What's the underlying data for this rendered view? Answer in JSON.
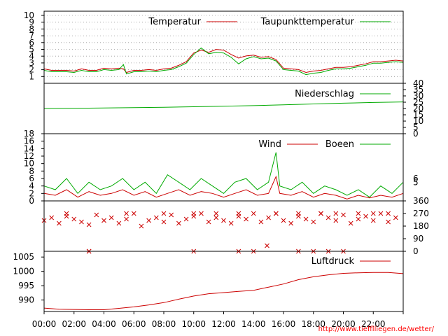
{
  "footer_url": "http://www.tiefflliegen.de/wetter/",
  "colors": {
    "red": "#cc0000",
    "green": "#00aa00",
    "grid": "#999999",
    "url": "#ff0000"
  },
  "chart_data": [
    {
      "id": "temperature",
      "type": "line",
      "y_ticks": [
        "1",
        "2",
        "3",
        "4",
        "5",
        "6",
        "7",
        "8",
        "9",
        "10"
      ],
      "ylim": [
        0,
        10
      ],
      "grid": true,
      "legend_position": "top-right",
      "series": [
        {
          "name": "Temperatur",
          "color": "#cc0000",
          "x": [
            0,
            0.5,
            1,
            1.5,
            2,
            2.5,
            3,
            3.5,
            4,
            4.5,
            5,
            5.3,
            5.5,
            6,
            6.5,
            7,
            7.5,
            8,
            8.5,
            9,
            9.5,
            10,
            10.5,
            11,
            11.5,
            12,
            12.5,
            13,
            13.5,
            14,
            14.5,
            15,
            15.5,
            16,
            16.5,
            17,
            17.5,
            18,
            18.5,
            19,
            19.5,
            20,
            20.5,
            21,
            21.5,
            22,
            22.5,
            23,
            23.5,
            24
          ],
          "values": [
            2.0,
            1.8,
            1.8,
            1.8,
            1.7,
            2.0,
            1.8,
            1.8,
            2.1,
            2.0,
            2.1,
            2.0,
            1.5,
            1.8,
            1.8,
            1.9,
            1.8,
            2.0,
            2.1,
            2.5,
            3.0,
            4.2,
            4.6,
            4.3,
            4.7,
            4.6,
            4.0,
            3.5,
            3.8,
            3.9,
            3.6,
            3.7,
            3.3,
            2.1,
            2.0,
            1.9,
            1.5,
            1.7,
            1.8,
            2.0,
            2.2,
            2.2,
            2.3,
            2.5,
            2.7,
            3.0,
            3.0,
            3.1,
            3.2,
            3.1
          ]
        },
        {
          "name": "Taupunkttemperatur",
          "color": "#00aa00",
          "x": [
            0,
            0.5,
            1,
            1.5,
            2,
            2.5,
            3,
            3.5,
            4,
            4.5,
            5,
            5.3,
            5.5,
            6,
            6.5,
            7,
            7.5,
            8,
            8.5,
            9,
            9.5,
            10,
            10.5,
            11,
            11.5,
            12,
            12.5,
            13,
            13.5,
            14,
            14.5,
            15,
            15.5,
            16,
            16.5,
            17,
            17.5,
            18,
            18.5,
            19,
            19.5,
            20,
            20.5,
            21,
            21.5,
            22,
            22.5,
            23,
            23.5,
            24
          ],
          "values": [
            1.8,
            1.6,
            1.6,
            1.6,
            1.5,
            1.8,
            1.6,
            1.6,
            1.9,
            1.8,
            1.9,
            2.6,
            1.3,
            1.6,
            1.6,
            1.7,
            1.6,
            1.8,
            1.9,
            2.3,
            2.8,
            4.0,
            4.9,
            4.1,
            4.3,
            4.2,
            3.6,
            2.7,
            3.4,
            3.7,
            3.4,
            3.5,
            3.1,
            1.9,
            1.8,
            1.7,
            1.2,
            1.4,
            1.5,
            1.8,
            2.0,
            2.0,
            2.1,
            2.3,
            2.5,
            2.8,
            2.8,
            2.9,
            3.0,
            2.9
          ]
        }
      ]
    },
    {
      "id": "precipitation",
      "type": "line",
      "y_ticks": [
        "0",
        "5",
        "10",
        "15",
        "20",
        "25",
        "30",
        "35",
        "40"
      ],
      "ylim": [
        0,
        40
      ],
      "legend_position": "top-right",
      "series": [
        {
          "name": "Niederschlag",
          "color": "#00aa00",
          "x": [
            0,
            2,
            4,
            6,
            8,
            10,
            12,
            14,
            16,
            18,
            20,
            22,
            24
          ],
          "values": [
            20.0,
            20.2,
            20.4,
            20.7,
            21.0,
            21.4,
            21.8,
            22.3,
            22.9,
            23.6,
            24.2,
            24.8,
            25.2
          ]
        }
      ]
    },
    {
      "id": "wind",
      "type": "line",
      "y_ticks": [
        "0",
        "2",
        "4",
        "6",
        "8",
        "10",
        "12",
        "14",
        "16",
        "18"
      ],
      "right_ticks": [
        "5",
        "6"
      ],
      "ylim": [
        0,
        18
      ],
      "legend_position": "top-right",
      "series": [
        {
          "name": "Wind",
          "color": "#cc0000",
          "x": [
            0,
            0.75,
            1.5,
            2.25,
            3,
            3.75,
            4.5,
            5.25,
            6,
            6.75,
            7.5,
            8.25,
            9,
            9.75,
            10.5,
            11.25,
            12,
            12.75,
            13.5,
            14.25,
            15,
            15.5,
            15.75,
            16.5,
            17.25,
            18,
            18.75,
            19.5,
            20.25,
            21,
            21.75,
            22.5,
            23.25,
            24
          ],
          "values": [
            2,
            1.5,
            3,
            1,
            2.5,
            1.5,
            2,
            3,
            1.5,
            2.5,
            1,
            2,
            3,
            1.5,
            2.5,
            2,
            1,
            2,
            3,
            1.5,
            2,
            6.5,
            2,
            1.5,
            2.5,
            1,
            2,
            1.5,
            0.5,
            1.5,
            0.8,
            1.5,
            1,
            2
          ]
        },
        {
          "name": "Boeen",
          "color": "#00aa00",
          "x": [
            0,
            0.75,
            1.5,
            2.25,
            3,
            3.75,
            4.5,
            5.25,
            6,
            6.75,
            7.5,
            8.25,
            9,
            9.75,
            10.5,
            11.25,
            12,
            12.75,
            13.5,
            14.25,
            15,
            15.5,
            15.75,
            16.5,
            17.25,
            18,
            18.75,
            19.5,
            20.25,
            21,
            21.75,
            22.5,
            23.25,
            24
          ],
          "values": [
            4,
            3,
            6,
            2,
            5,
            3,
            4,
            6,
            3,
            5,
            2,
            7,
            5,
            3,
            6,
            4,
            2,
            5,
            6,
            3,
            5,
            13,
            4,
            3,
            5,
            2,
            4,
            3,
            1.5,
            3,
            1,
            4,
            2,
            5
          ]
        }
      ]
    },
    {
      "id": "wind-direction",
      "type": "scatter",
      "y_ticks": [
        "0",
        "90",
        "180",
        "270",
        "360"
      ],
      "ylim": [
        0,
        360
      ],
      "series": [
        {
          "color": "#cc0000",
          "x": [
            0,
            0.5,
            1,
            1.5,
            2,
            2.5,
            3,
            3.5,
            4,
            4.5,
            5,
            5.5,
            6,
            6.5,
            7,
            7.5,
            8,
            8.5,
            9,
            9.5,
            10,
            10.5,
            11,
            11.5,
            12,
            12.5,
            13,
            13.5,
            14,
            14.5,
            15,
            15.5,
            16,
            16.5,
            17,
            17.5,
            18,
            18.5,
            19,
            19.5,
            20,
            20.5,
            21,
            21.5,
            22,
            22.5,
            23,
            23.5,
            1.5,
            3.0,
            5.5,
            8.0,
            10.0,
            11.5,
            13.0,
            14.9,
            15.5,
            17.0,
            18.5,
            19.5,
            21.0,
            22.0,
            23.0,
            3.0,
            10.0,
            13.0,
            14.0,
            17.0,
            18.0,
            19.0,
            20.0
          ],
          "values": [
            220,
            240,
            200,
            250,
            230,
            210,
            190,
            260,
            220,
            240,
            200,
            230,
            270,
            180,
            220,
            240,
            210,
            260,
            200,
            230,
            250,
            270,
            210,
            240,
            220,
            200,
            250,
            230,
            270,
            210,
            240,
            270,
            220,
            200,
            250,
            230,
            210,
            270,
            240,
            220,
            260,
            200,
            230,
            250,
            220,
            270,
            210,
            240,
            270,
            0,
            270,
            270,
            270,
            270,
            270,
            40,
            270,
            270,
            270,
            270,
            270,
            270,
            270,
            0,
            0,
            0,
            0,
            0,
            0,
            0,
            0
          ]
        }
      ]
    },
    {
      "id": "pressure",
      "type": "line",
      "y_ticks": [
        "990",
        "995",
        "1000",
        "1005"
      ],
      "ylim": [
        986,
        1007
      ],
      "legend_position": "top-right",
      "x_tick_labels": [
        "00:00",
        "02:00",
        "04:00",
        "06:00",
        "08:00",
        "10:00",
        "12:00",
        "14:00",
        "16:00",
        "18:00",
        "20:00",
        "22:00"
      ],
      "series": [
        {
          "name": "Luftdruck",
          "color": "#cc0000",
          "x": [
            0,
            1,
            2,
            3,
            4,
            5,
            6,
            7,
            8,
            9,
            10,
            11,
            12,
            13,
            14,
            15,
            16,
            17,
            18,
            19,
            20,
            21,
            22,
            23,
            24
          ],
          "values": [
            987.2,
            986.8,
            986.7,
            986.6,
            986.6,
            987.1,
            987.6,
            988.3,
            989.1,
            990.3,
            991.4,
            992.2,
            992.6,
            993.0,
            993.4,
            994.5,
            995.6,
            997.1,
            998.1,
            998.8,
            999.3,
            999.5,
            999.6,
            999.6,
            999.2
          ]
        }
      ]
    }
  ]
}
